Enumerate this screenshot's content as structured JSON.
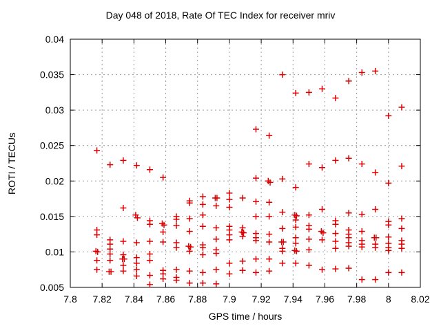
{
  "title": "Day 048 of 2018, Rate Of TEC Index for receiver mriv",
  "chart_data": {
    "type": "scatter",
    "title": "Day 048 of 2018, Rate Of TEC Index for receiver mriv",
    "xlabel": "GPS time / hours",
    "ylabel": "ROTI / TECUs",
    "xlim": [
      7.8,
      8.02
    ],
    "ylim": [
      0.005,
      0.04
    ],
    "xticks": [
      7.8,
      7.82,
      7.84,
      7.86,
      7.88,
      7.9,
      7.92,
      7.94,
      7.96,
      7.98,
      8.0,
      8.02
    ],
    "xtick_labels": [
      "7.8",
      "7.82",
      "7.84",
      "7.86",
      "7.88",
      "7.9",
      "7.92",
      "7.94",
      "7.96",
      "7.98",
      "8",
      "8.02"
    ],
    "yticks": [
      0.005,
      0.01,
      0.015,
      0.02,
      0.025,
      0.03,
      0.035,
      0.04
    ],
    "ytick_labels": [
      "0.005",
      "0.01",
      "0.015",
      "0.02",
      "0.025",
      "0.03",
      "0.035",
      "0.04"
    ],
    "grid": true,
    "legend": "none",
    "marker": {
      "shape": "plus",
      "color": "#dd0000",
      "size": 9
    },
    "grid_color": "#999999",
    "axis_color": "#000000",
    "points": [
      [
        7.8167,
        0.0243
      ],
      [
        7.8167,
        0.0131
      ],
      [
        7.8167,
        0.0124
      ],
      [
        7.8161,
        0.0101
      ],
      [
        7.8172,
        0.01
      ],
      [
        7.8167,
        0.0088
      ],
      [
        7.8167,
        0.0075
      ],
      [
        7.825,
        0.0223
      ],
      [
        7.825,
        0.0117
      ],
      [
        7.825,
        0.0111
      ],
      [
        7.825,
        0.0104
      ],
      [
        7.825,
        0.0097
      ],
      [
        7.825,
        0.0088
      ],
      [
        7.8244,
        0.0072
      ],
      [
        7.8256,
        0.0072
      ],
      [
        7.8333,
        0.0229
      ],
      [
        7.8333,
        0.0162
      ],
      [
        7.8333,
        0.0115
      ],
      [
        7.8333,
        0.0096
      ],
      [
        7.8328,
        0.009
      ],
      [
        7.8339,
        0.009
      ],
      [
        7.8333,
        0.0081
      ],
      [
        7.8333,
        0.0073
      ],
      [
        7.8417,
        0.0222
      ],
      [
        7.8411,
        0.0152
      ],
      [
        7.8422,
        0.0148
      ],
      [
        7.8417,
        0.0113
      ],
      [
        7.8417,
        0.0092
      ],
      [
        7.8417,
        0.0084
      ],
      [
        7.8417,
        0.0075
      ],
      [
        7.8417,
        0.0066
      ],
      [
        7.85,
        0.0216
      ],
      [
        7.85,
        0.0144
      ],
      [
        7.85,
        0.0139
      ],
      [
        7.85,
        0.0115
      ],
      [
        7.85,
        0.0097
      ],
      [
        7.85,
        0.0088
      ],
      [
        7.85,
        0.0067
      ],
      [
        7.85,
        0.0054
      ],
      [
        7.8583,
        0.0205
      ],
      [
        7.8578,
        0.014
      ],
      [
        7.8589,
        0.0138
      ],
      [
        7.8583,
        0.0128
      ],
      [
        7.8583,
        0.0114
      ],
      [
        7.8583,
        0.0074
      ],
      [
        7.8583,
        0.0069
      ],
      [
        7.8583,
        0.0062
      ],
      [
        7.8667,
        0.015
      ],
      [
        7.8667,
        0.0146
      ],
      [
        7.8667,
        0.0137
      ],
      [
        7.8667,
        0.0113
      ],
      [
        7.8667,
        0.0106
      ],
      [
        7.8667,
        0.0075
      ],
      [
        7.8667,
        0.0064
      ],
      [
        7.8667,
        0.006
      ],
      [
        7.875,
        0.0172
      ],
      [
        7.875,
        0.0169
      ],
      [
        7.875,
        0.0147
      ],
      [
        7.875,
        0.0129
      ],
      [
        7.8744,
        0.0108
      ],
      [
        7.8756,
        0.0107
      ],
      [
        7.875,
        0.0101
      ],
      [
        7.875,
        0.0073
      ],
      [
        7.875,
        0.0056
      ],
      [
        7.8833,
        0.0178
      ],
      [
        7.8833,
        0.0167
      ],
      [
        7.8833,
        0.0152
      ],
      [
        7.8833,
        0.0136
      ],
      [
        7.8833,
        0.011
      ],
      [
        7.8833,
        0.0106
      ],
      [
        7.8833,
        0.0096
      ],
      [
        7.8833,
        0.0071
      ],
      [
        7.8833,
        0.0056
      ],
      [
        7.8911,
        0.0176
      ],
      [
        7.8922,
        0.0176
      ],
      [
        7.8917,
        0.0165
      ],
      [
        7.8917,
        0.0134
      ],
      [
        7.8917,
        0.0118
      ],
      [
        7.8917,
        0.0103
      ],
      [
        7.8917,
        0.0098
      ],
      [
        7.8917,
        0.0075
      ],
      [
        7.8917,
        0.0055
      ],
      [
        7.9,
        0.0183
      ],
      [
        7.9,
        0.0174
      ],
      [
        7.9,
        0.0163
      ],
      [
        7.9,
        0.0136
      ],
      [
        7.9,
        0.0131
      ],
      [
        7.9,
        0.0124
      ],
      [
        7.9,
        0.0117
      ],
      [
        7.9,
        0.0084
      ],
      [
        7.9,
        0.0069
      ],
      [
        7.9083,
        0.0176
      ],
      [
        7.9083,
        0.0134
      ],
      [
        7.9078,
        0.0128
      ],
      [
        7.9089,
        0.0127
      ],
      [
        7.9083,
        0.0122
      ],
      [
        7.9083,
        0.0087
      ],
      [
        7.9083,
        0.0074
      ],
      [
        7.9167,
        0.0273
      ],
      [
        7.9167,
        0.0204
      ],
      [
        7.9167,
        0.0171
      ],
      [
        7.9167,
        0.015
      ],
      [
        7.9167,
        0.0126
      ],
      [
        7.9167,
        0.012
      ],
      [
        7.9167,
        0.0116
      ],
      [
        7.9167,
        0.009
      ],
      [
        7.9167,
        0.0071
      ],
      [
        7.925,
        0.0264
      ],
      [
        7.9244,
        0.02
      ],
      [
        7.9256,
        0.0198
      ],
      [
        7.925,
        0.017
      ],
      [
        7.925,
        0.015
      ],
      [
        7.925,
        0.0125
      ],
      [
        7.925,
        0.0114
      ],
      [
        7.925,
        0.009
      ],
      [
        7.925,
        0.0073
      ],
      [
        7.9333,
        0.035
      ],
      [
        7.9333,
        0.0203
      ],
      [
        7.9333,
        0.0156
      ],
      [
        7.9333,
        0.0133
      ],
      [
        7.9328,
        0.0114
      ],
      [
        7.9339,
        0.0114
      ],
      [
        7.9333,
        0.0105
      ],
      [
        7.9333,
        0.0101
      ],
      [
        7.9333,
        0.0084
      ],
      [
        7.9417,
        0.0324
      ],
      [
        7.9417,
        0.0191
      ],
      [
        7.9411,
        0.0152
      ],
      [
        7.9422,
        0.0151
      ],
      [
        7.9417,
        0.0145
      ],
      [
        7.9417,
        0.0135
      ],
      [
        7.9417,
        0.012
      ],
      [
        7.9417,
        0.0112
      ],
      [
        7.9411,
        0.0102
      ],
      [
        7.9422,
        0.0101
      ],
      [
        7.9417,
        0.0084
      ],
      [
        7.95,
        0.0325
      ],
      [
        7.95,
        0.0224
      ],
      [
        7.95,
        0.0152
      ],
      [
        7.95,
        0.0137
      ],
      [
        7.95,
        0.0132
      ],
      [
        7.95,
        0.0118
      ],
      [
        7.95,
        0.0103
      ],
      [
        7.95,
        0.0081
      ],
      [
        7.9583,
        0.033
      ],
      [
        7.9583,
        0.0219
      ],
      [
        7.9583,
        0.016
      ],
      [
        7.9578,
        0.0129
      ],
      [
        7.9589,
        0.0127
      ],
      [
        7.9583,
        0.0117
      ],
      [
        7.9583,
        0.0075
      ],
      [
        7.9667,
        0.0317
      ],
      [
        7.9667,
        0.0229
      ],
      [
        7.9667,
        0.0144
      ],
      [
        7.9667,
        0.0139
      ],
      [
        7.9667,
        0.0126
      ],
      [
        7.9667,
        0.0115
      ],
      [
        7.9667,
        0.0105
      ],
      [
        7.9667,
        0.0076
      ],
      [
        7.975,
        0.0341
      ],
      [
        7.975,
        0.0232
      ],
      [
        7.975,
        0.0155
      ],
      [
        7.975,
        0.0131
      ],
      [
        7.975,
        0.0125
      ],
      [
        7.975,
        0.012
      ],
      [
        7.975,
        0.0113
      ],
      [
        7.975,
        0.0108
      ],
      [
        7.975,
        0.0077
      ],
      [
        7.9833,
        0.0353
      ],
      [
        7.9833,
        0.0224
      ],
      [
        7.9833,
        0.0153
      ],
      [
        7.9833,
        0.0129
      ],
      [
        7.9833,
        0.0116
      ],
      [
        7.9833,
        0.0111
      ],
      [
        7.9833,
        0.0107
      ],
      [
        7.9833,
        0.0061
      ],
      [
        7.9917,
        0.0355
      ],
      [
        7.9917,
        0.0212
      ],
      [
        7.9917,
        0.016
      ],
      [
        7.9911,
        0.012
      ],
      [
        7.9922,
        0.012
      ],
      [
        7.9917,
        0.0111
      ],
      [
        7.9917,
        0.0106
      ],
      [
        7.9917,
        0.0061
      ],
      [
        8.0,
        0.0292
      ],
      [
        8.0,
        0.0197
      ],
      [
        8.0,
        0.0143
      ],
      [
        8.0,
        0.0138
      ],
      [
        8.0,
        0.0121
      ],
      [
        8.0,
        0.0112
      ],
      [
        8.0,
        0.0106
      ],
      [
        8.0,
        0.0102
      ],
      [
        8.0,
        0.0071
      ],
      [
        8.0083,
        0.0304
      ],
      [
        8.0083,
        0.0221
      ],
      [
        8.0083,
        0.0147
      ],
      [
        8.0083,
        0.0133
      ],
      [
        8.0083,
        0.0116
      ],
      [
        8.0083,
        0.0111
      ],
      [
        8.0083,
        0.0105
      ],
      [
        8.0083,
        0.0071
      ]
    ]
  }
}
